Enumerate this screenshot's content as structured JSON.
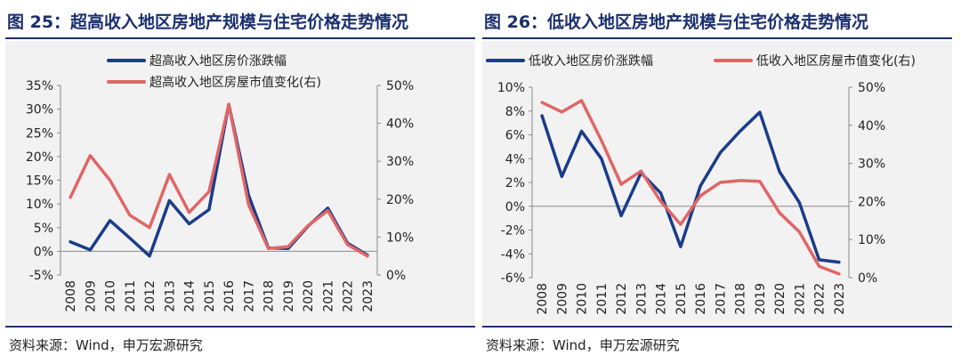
{
  "colors": {
    "navy": "#1a3c8a",
    "red": "#e06666",
    "title": "#1a2f6e",
    "bg": "#f2f2f2"
  },
  "charts": [
    {
      "title": "图 25：超高收入地区房地产规模与住宅价格走势情况",
      "source": "资料来源：Wind，申万宏源研究",
      "chart_data": {
        "type": "line",
        "x": [
          "2008",
          "2009",
          "2010",
          "2011",
          "2012",
          "2013",
          "2014",
          "2015",
          "2016",
          "2017",
          "2018",
          "2019",
          "2020",
          "2021",
          "2022",
          "2023"
        ],
        "series": [
          {
            "name": "超高收入地区房价涨跌幅",
            "axis": "left",
            "color": "#1a3c8a",
            "values": [
              2.0,
              0.3,
              6.5,
              2.8,
              -1.0,
              10.7,
              5.8,
              8.8,
              31.0,
              11.8,
              0.7,
              0.6,
              5.3,
              9.1,
              1.7,
              -0.8
            ]
          },
          {
            "name": "超高收入地区房屋市值变化(右)",
            "axis": "right",
            "color": "#e06666",
            "values": [
              20.5,
              31.5,
              25.0,
              15.8,
              12.5,
              26.5,
              16.5,
              22.0,
              45.0,
              18.5,
              7.0,
              7.5,
              13.0,
              17.0,
              8.0,
              5.0
            ]
          }
        ],
        "left_axis": {
          "min": -5,
          "max": 35,
          "ticks": [
            "-5%",
            "0%",
            "5%",
            "10%",
            "15%",
            "20%",
            "25%",
            "30%",
            "35%"
          ]
        },
        "right_axis": {
          "min": 0,
          "max": 50,
          "ticks": [
            "0%",
            "10%",
            "20%",
            "30%",
            "40%",
            "50%"
          ]
        },
        "grid": false,
        "legend": "top-center"
      }
    },
    {
      "title": "图 26：低收入地区房地产规模与住宅价格走势情况",
      "source": "资料来源：Wind，申万宏源研究",
      "chart_data": {
        "type": "line",
        "x": [
          "2008",
          "2009",
          "2010",
          "2011",
          "2012",
          "2013",
          "2014",
          "2015",
          "2016",
          "2017",
          "2018",
          "2019",
          "2020",
          "2021",
          "2022",
          "2023"
        ],
        "series": [
          {
            "name": "低收入地区房价涨跌幅",
            "axis": "left",
            "color": "#1a3c8a",
            "values": [
              7.6,
              2.5,
              6.3,
              4.0,
              -0.8,
              2.8,
              1.1,
              -3.4,
              1.7,
              4.5,
              6.3,
              7.9,
              2.9,
              0.3,
              -4.5,
              -4.7
            ]
          },
          {
            "name": "低收入地区房屋市值变化(右)",
            "axis": "right",
            "color": "#e06666",
            "values": [
              46.0,
              43.5,
              46.5,
              36.0,
              24.5,
              28.0,
              20.0,
              14.0,
              21.5,
              25.0,
              25.5,
              25.3,
              17.0,
              12.0,
              3.0,
              1.0
            ]
          }
        ],
        "left_axis": {
          "min": -6,
          "max": 10,
          "ticks": [
            "-6%",
            "-4%",
            "-2%",
            "0%",
            "2%",
            "4%",
            "6%",
            "8%",
            "10%"
          ]
        },
        "right_axis": {
          "min": 0,
          "max": 50,
          "ticks": [
            "0%",
            "10%",
            "20%",
            "30%",
            "40%",
            "50%"
          ]
        },
        "grid": false,
        "legend": "top"
      }
    }
  ]
}
